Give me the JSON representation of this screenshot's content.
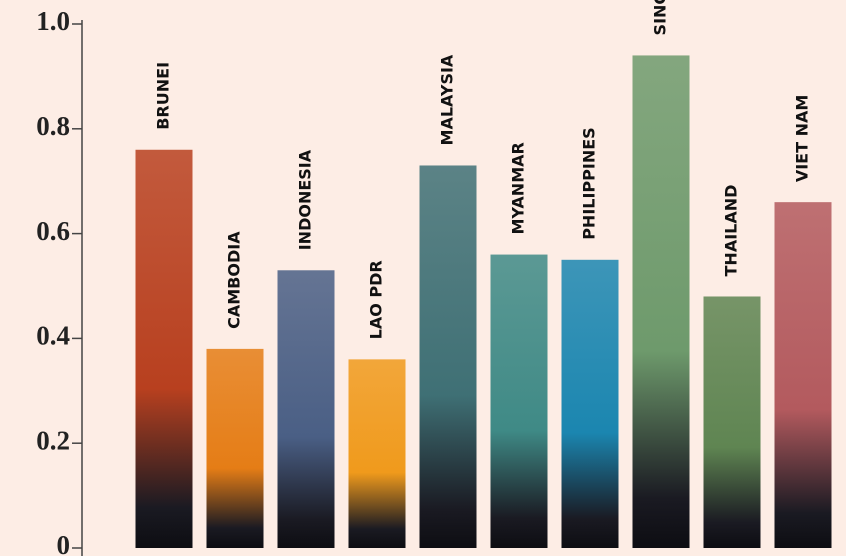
{
  "chart_data": {
    "type": "bar",
    "categories": [
      "BRUNEI",
      "CAMBODIA",
      "INDONESIA",
      "LAO PDR",
      "MALAYSIA",
      "MYANMAR",
      "PHILIPPINES",
      "SINGAPORE",
      "THAILAND",
      "VIET NAM"
    ],
    "values": [
      0.76,
      0.38,
      0.53,
      0.36,
      0.73,
      0.56,
      0.55,
      0.94,
      0.48,
      0.66
    ],
    "colors": [
      "#b8401f",
      "#e57d16",
      "#4a5f85",
      "#f09a1c",
      "#3f7075",
      "#3f8a86",
      "#1b86b0",
      "#6e9a6c",
      "#5f8552",
      "#b35a5e"
    ],
    "ylim": [
      0,
      1
    ],
    "yticks": [
      0,
      0.2,
      0.4,
      0.6,
      0.8,
      {
        "value": 1,
        "label": "1.0"
      }
    ]
  }
}
